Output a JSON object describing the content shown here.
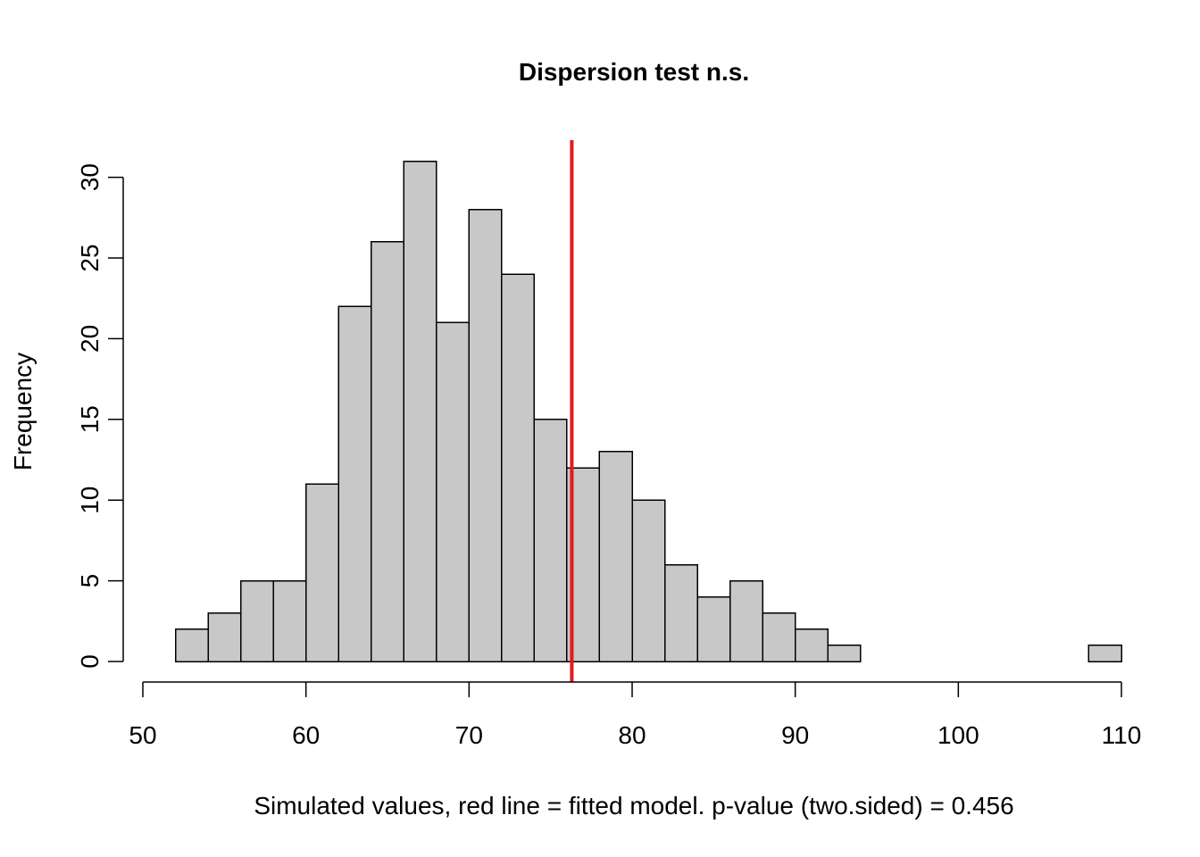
{
  "chart_data": {
    "type": "bar",
    "title": "Dispersion test n.s.",
    "xlabel": "Simulated values, red line = fitted model. p-value (two.sided) = 0.456",
    "ylabel": "Frequency",
    "bin_width": 2,
    "bins": [
      {
        "x0": 52,
        "x1": 54,
        "count": 2
      },
      {
        "x0": 54,
        "x1": 56,
        "count": 3
      },
      {
        "x0": 56,
        "x1": 58,
        "count": 5
      },
      {
        "x0": 58,
        "x1": 60,
        "count": 5
      },
      {
        "x0": 60,
        "x1": 62,
        "count": 11
      },
      {
        "x0": 62,
        "x1": 64,
        "count": 22
      },
      {
        "x0": 64,
        "x1": 66,
        "count": 26
      },
      {
        "x0": 66,
        "x1": 68,
        "count": 31
      },
      {
        "x0": 68,
        "x1": 70,
        "count": 21
      },
      {
        "x0": 70,
        "x1": 72,
        "count": 28
      },
      {
        "x0": 72,
        "x1": 74,
        "count": 24
      },
      {
        "x0": 74,
        "x1": 76,
        "count": 15
      },
      {
        "x0": 76,
        "x1": 78,
        "count": 12
      },
      {
        "x0": 78,
        "x1": 80,
        "count": 13
      },
      {
        "x0": 80,
        "x1": 82,
        "count": 10
      },
      {
        "x0": 82,
        "x1": 84,
        "count": 6
      },
      {
        "x0": 84,
        "x1": 86,
        "count": 4
      },
      {
        "x0": 86,
        "x1": 88,
        "count": 5
      },
      {
        "x0": 88,
        "x1": 90,
        "count": 3
      },
      {
        "x0": 90,
        "x1": 92,
        "count": 2
      },
      {
        "x0": 92,
        "x1": 94,
        "count": 1
      },
      {
        "x0": 94,
        "x1": 96,
        "count": 0
      },
      {
        "x0": 96,
        "x1": 98,
        "count": 0
      },
      {
        "x0": 98,
        "x1": 100,
        "count": 0
      },
      {
        "x0": 100,
        "x1": 102,
        "count": 0
      },
      {
        "x0": 102,
        "x1": 104,
        "count": 0
      },
      {
        "x0": 104,
        "x1": 106,
        "count": 0
      },
      {
        "x0": 106,
        "x1": 108,
        "count": 0
      },
      {
        "x0": 108,
        "x1": 110,
        "count": 1
      }
    ],
    "xlim": [
      50,
      110
    ],
    "ylim": [
      0,
      31
    ],
    "x_ticks": [
      "50",
      "60",
      "70",
      "80",
      "90",
      "100",
      "110"
    ],
    "y_ticks": [
      "0",
      "5",
      "10",
      "15",
      "20",
      "25",
      "30"
    ],
    "reference_line": {
      "x": 76.3,
      "color": "#e41a1c"
    },
    "bar_fill": "#c8c8c8",
    "bar_stroke": "#000000",
    "grid": false
  }
}
